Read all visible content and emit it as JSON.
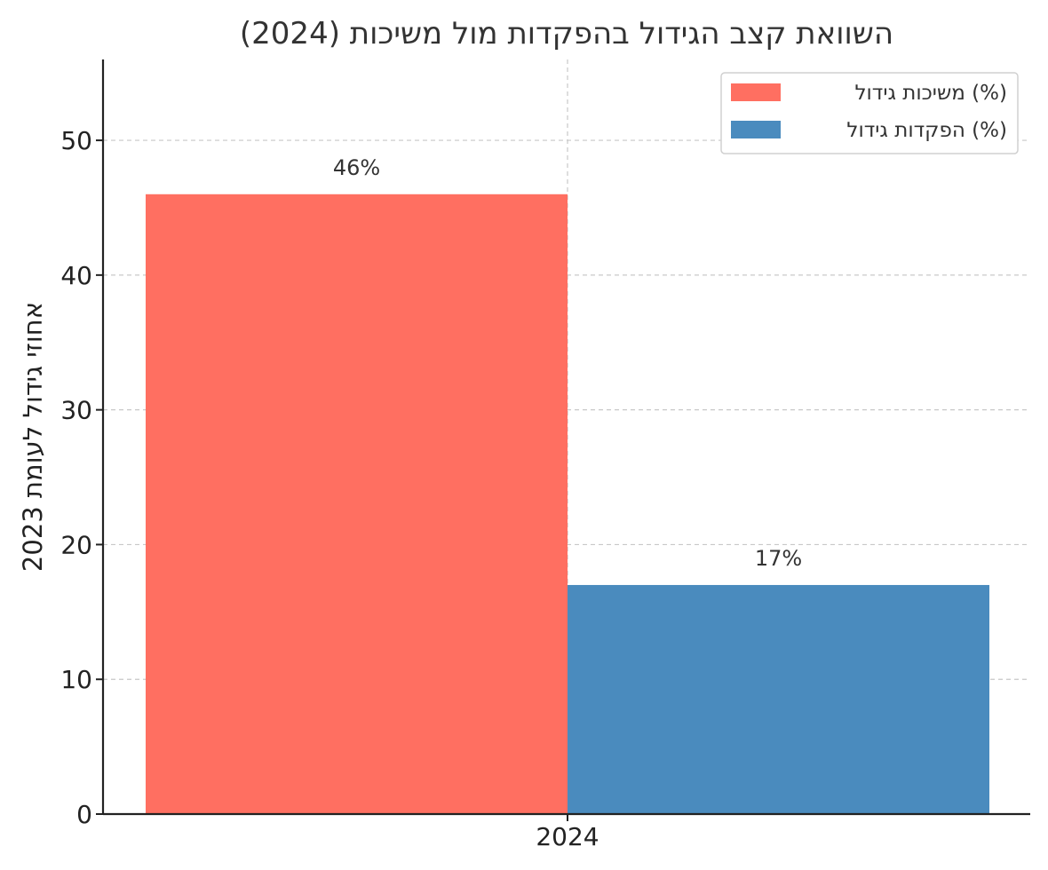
{
  "chart_data": {
    "type": "bar",
    "title": "השוואת קצב הגידול בהפקדות מול משיכות (2024)",
    "xlabel": "",
    "ylabel": "אחוזי גידול לעומת 2023",
    "categories": [
      "2024"
    ],
    "series": [
      {
        "name": "משיכות גידול (%)",
        "values": [
          46
        ],
        "color": "#FF6F61",
        "label": "46%"
      },
      {
        "name": "הפקדות גידול (%)",
        "values": [
          17
        ],
        "color": "#4A8BBE",
        "label": "17%"
      }
    ],
    "ylim": [
      0,
      56
    ],
    "yticks": [
      0,
      10,
      20,
      30,
      40,
      50
    ],
    "grid": true,
    "legend_position": "top-right"
  }
}
